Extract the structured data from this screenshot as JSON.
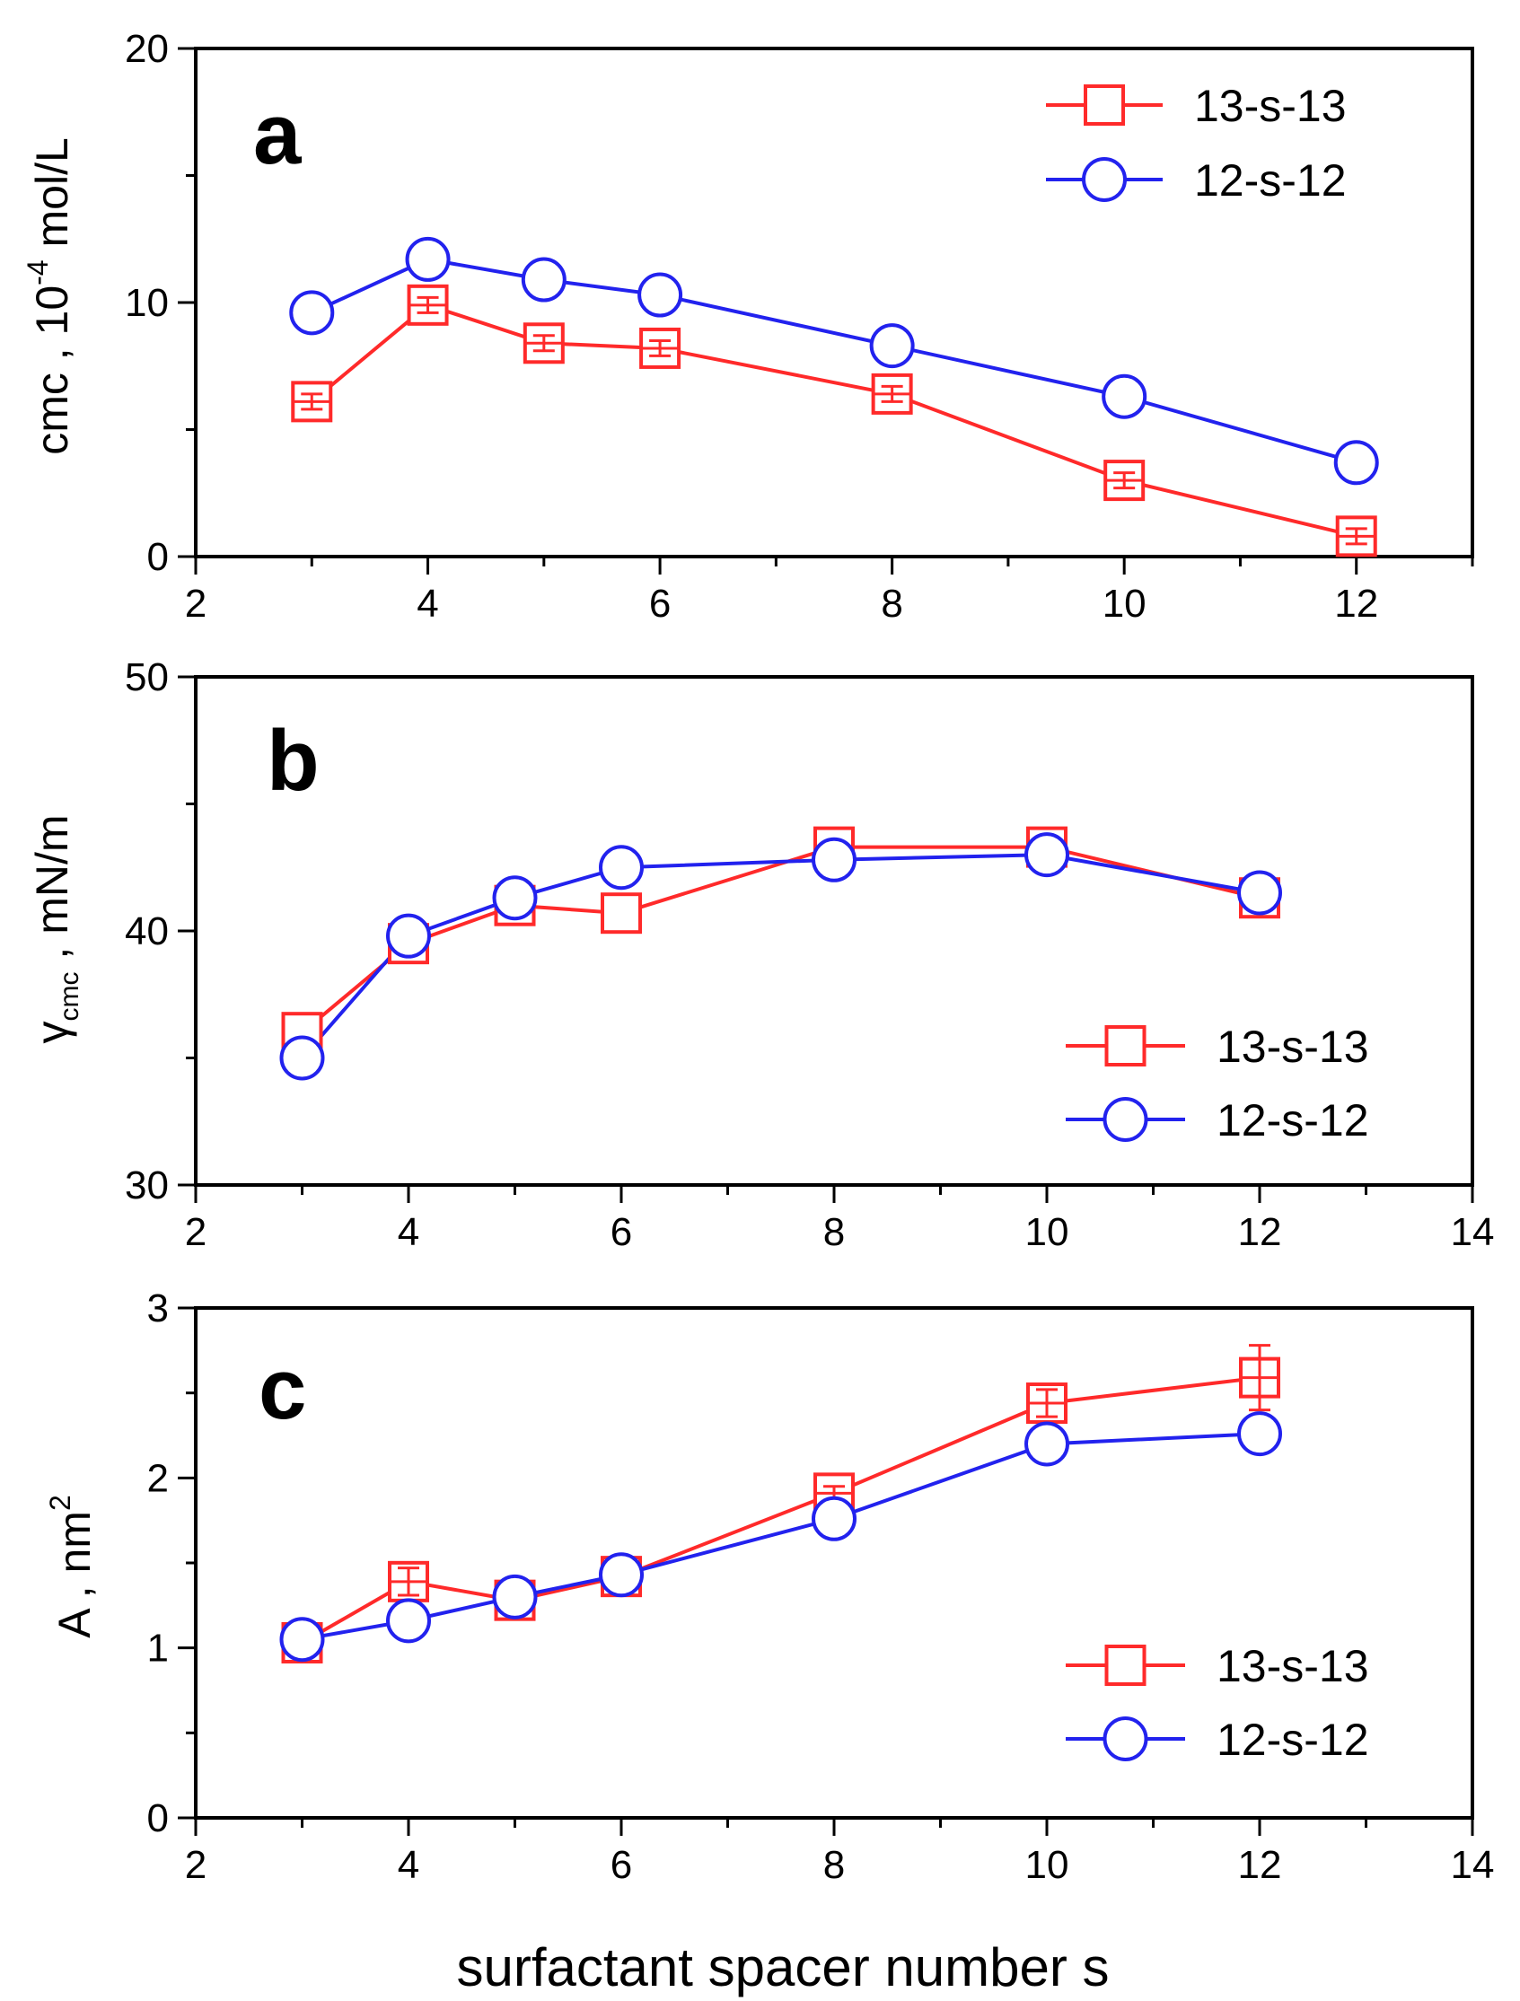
{
  "figure": {
    "xlabel": "surfactant spacer number s"
  },
  "chart_data": [
    {
      "type": "line",
      "panel": "a",
      "ylabel_prefix": "cmc , 10",
      "ylabel_exp": "-4",
      "ylabel_suffix": " mol/L",
      "xlim": [
        2,
        13
      ],
      "ylim": [
        0,
        20
      ],
      "xticks": [
        2,
        4,
        6,
        8,
        10,
        12
      ],
      "yticks": [
        0,
        10,
        20
      ],
      "legend_position": "top-right",
      "series": [
        {
          "name": "13-s-13",
          "marker": "square",
          "color": "#ff2a2a",
          "x": [
            3,
            4,
            5,
            6,
            8,
            10,
            12
          ],
          "y": [
            6.1,
            9.9,
            8.4,
            8.2,
            6.4,
            3.0,
            0.8
          ],
          "err": [
            0.3,
            0.3,
            0.3,
            0.3,
            0.3,
            0.3,
            0.3
          ]
        },
        {
          "name": "12-s-12",
          "marker": "circle",
          "color": "#2222ee",
          "x": [
            3,
            4,
            5,
            6,
            8,
            10,
            12
          ],
          "y": [
            9.6,
            11.7,
            10.9,
            10.3,
            8.3,
            6.3,
            3.7
          ]
        }
      ]
    },
    {
      "type": "line",
      "panel": "b",
      "ylabel_prefix": "γ",
      "ylabel_sub": "cmc",
      "ylabel_suffix": " , mN/m",
      "xlim": [
        2,
        14
      ],
      "ylim": [
        30,
        50
      ],
      "xticks": [
        2,
        4,
        6,
        8,
        10,
        12,
        14
      ],
      "yticks": [
        30,
        40,
        50
      ],
      "legend_position": "bottom-right",
      "series": [
        {
          "name": "13-s-13",
          "marker": "square",
          "color": "#ff2a2a",
          "x": [
            3,
            4,
            5,
            6,
            8,
            10,
            12
          ],
          "y": [
            36.0,
            39.5,
            41.0,
            40.7,
            43.3,
            43.3,
            41.3
          ]
        },
        {
          "name": "12-s-12",
          "marker": "circle",
          "color": "#2222ee",
          "x": [
            3,
            4,
            5,
            6,
            8,
            10,
            12
          ],
          "y": [
            35.0,
            39.8,
            41.3,
            42.5,
            42.8,
            43.0,
            41.5
          ]
        }
      ]
    },
    {
      "type": "line",
      "panel": "c",
      "ylabel_prefix": "A , nm",
      "ylabel_sup": "2",
      "xlim": [
        2,
        14
      ],
      "ylim": [
        0,
        3
      ],
      "xticks": [
        2,
        4,
        6,
        8,
        10,
        12,
        14
      ],
      "yticks": [
        0,
        1,
        2,
        3
      ],
      "legend_position": "bottom-right",
      "series": [
        {
          "name": "13-s-13",
          "marker": "square",
          "color": "#ff2a2a",
          "x": [
            3,
            4,
            5,
            6,
            8,
            10,
            12
          ],
          "y": [
            1.03,
            1.39,
            1.28,
            1.42,
            1.91,
            2.44,
            2.59
          ],
          "err": [
            0.04,
            0.08,
            0.05,
            0.04,
            0.04,
            0.08,
            0.19
          ]
        },
        {
          "name": "12-s-12",
          "marker": "circle",
          "color": "#2222ee",
          "x": [
            3,
            4,
            5,
            6,
            8,
            10,
            12
          ],
          "y": [
            1.05,
            1.16,
            1.3,
            1.43,
            1.76,
            2.2,
            2.26
          ]
        }
      ]
    }
  ]
}
